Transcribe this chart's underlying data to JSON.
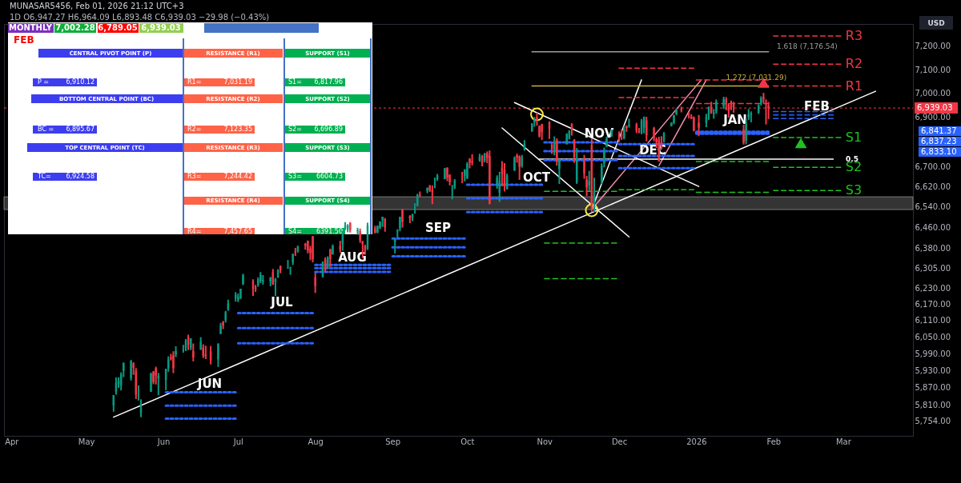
{
  "chart_data": {
    "type": "candlestick",
    "log": "y",
    "xlim": [
      "2025-03-29",
      "2026-03-29"
    ],
    "xticks": [
      {
        "value": "2025-04-01",
        "label": "Apr"
      },
      {
        "value": "2025-05-01",
        "label": "May"
      },
      {
        "value": "2025-06-01",
        "label": "Jun"
      },
      {
        "value": "2025-07-01",
        "label": "Jul"
      },
      {
        "value": "2025-08-01",
        "label": "Aug"
      },
      {
        "value": "2025-09-01",
        "label": "Sep"
      },
      {
        "value": "2025-10-01",
        "label": "Oct"
      },
      {
        "value": "2025-11-01",
        "label": "Nov"
      },
      {
        "value": "2025-12-01",
        "label": "Dec"
      },
      {
        "value": "2026-01-01",
        "label": "2026"
      },
      {
        "value": "2026-02-01",
        "label": "Feb"
      },
      {
        "value": "2026-03-01",
        "label": "Mar"
      }
    ],
    "ylim": [
      5703,
      7297
    ],
    "yticks": [
      {
        "value": 7200,
        "label": "7,200.00"
      },
      {
        "value": 7100,
        "label": "7,100.00"
      },
      {
        "value": 7000,
        "label": "7,000.00"
      },
      {
        "value": 6900,
        "label": "6,900.00"
      },
      {
        "value": 6700,
        "label": "6,700.00"
      },
      {
        "value": 6620,
        "label": "6,620.00"
      },
      {
        "value": 6540,
        "label": "6,540.00"
      },
      {
        "value": 6460,
        "label": "6,460.00"
      },
      {
        "value": 6380,
        "label": "6,380.00"
      },
      {
        "value": 6305,
        "label": "6,305.00"
      },
      {
        "value": 6230,
        "label": "6,230.00"
      },
      {
        "value": 6170,
        "label": "6,170.00"
      },
      {
        "value": 6110,
        "label": "6,110.00"
      },
      {
        "value": 6050,
        "label": "6,050.00"
      },
      {
        "value": 5990,
        "label": "5,990.00"
      },
      {
        "value": 5930,
        "label": "5,930.00"
      },
      {
        "value": 5870,
        "label": "5,870.00"
      },
      {
        "value": 5810,
        "label": "5,810.00"
      },
      {
        "value": 5754,
        "label": "5,754.00"
      }
    ],
    "x": [
      "2025-05-12",
      "2025-05-13",
      "2025-05-14",
      "2025-05-15",
      "2025-05-16",
      "2025-05-19",
      "2025-05-20",
      "2025-05-21",
      "2025-05-22",
      "2025-05-23",
      "2025-05-27",
      "2025-05-28",
      "2025-05-29",
      "2025-05-30",
      "2025-06-02",
      "2025-06-03",
      "2025-06-04",
      "2025-06-05",
      "2025-06-06",
      "2025-06-09",
      "2025-06-10",
      "2025-06-11",
      "2025-06-12",
      "2025-06-13",
      "2025-06-16",
      "2025-06-17",
      "2025-06-18",
      "2025-06-20",
      "2025-06-23",
      "2025-06-24",
      "2025-06-25",
      "2025-06-26",
      "2025-06-27",
      "2025-06-30",
      "2025-07-01",
      "2025-07-02",
      "2025-07-03",
      "2025-07-07",
      "2025-07-08",
      "2025-07-09",
      "2025-07-10",
      "2025-07-11",
      "2025-07-14",
      "2025-07-15",
      "2025-07-16",
      "2025-07-17",
      "2025-07-18",
      "2025-07-21",
      "2025-07-22",
      "2025-07-23",
      "2025-07-24",
      "2025-07-25",
      "2025-07-28",
      "2025-07-29",
      "2025-07-30",
      "2025-07-31",
      "2025-08-01",
      "2025-08-04",
      "2025-08-05",
      "2025-08-06",
      "2025-08-07",
      "2025-08-08",
      "2025-08-11",
      "2025-08-12",
      "2025-08-13",
      "2025-08-14",
      "2025-08-15",
      "2025-08-18",
      "2025-08-19",
      "2025-08-20",
      "2025-08-21",
      "2025-08-22",
      "2025-08-25",
      "2025-08-26",
      "2025-08-27",
      "2025-08-28",
      "2025-08-29",
      "2025-09-02",
      "2025-09-03",
      "2025-09-04",
      "2025-09-05",
      "2025-09-08",
      "2025-09-09",
      "2025-09-10",
      "2025-09-11",
      "2025-09-12",
      "2025-09-15",
      "2025-09-16",
      "2025-09-17",
      "2025-09-18",
      "2025-09-19",
      "2025-09-22",
      "2025-09-23",
      "2025-09-24",
      "2025-09-25",
      "2025-09-26",
      "2025-09-29",
      "2025-09-30",
      "2025-10-01",
      "2025-10-02",
      "2025-10-03",
      "2025-10-06",
      "2025-10-07",
      "2025-10-08",
      "2025-10-09",
      "2025-10-10",
      "2025-10-13",
      "2025-10-14",
      "2025-10-15",
      "2025-10-16",
      "2025-10-17",
      "2025-10-20",
      "2025-10-21",
      "2025-10-22",
      "2025-10-23",
      "2025-10-24",
      "2025-10-27",
      "2025-10-28",
      "2025-10-29",
      "2025-10-30",
      "2025-10-31",
      "2025-11-03",
      "2025-11-04",
      "2025-11-05",
      "2025-11-06",
      "2025-11-07",
      "2025-11-10",
      "2025-11-11",
      "2025-11-12",
      "2025-11-13",
      "2025-11-14",
      "2025-11-17",
      "2025-11-18",
      "2025-11-19",
      "2025-11-20",
      "2025-11-21",
      "2025-11-24",
      "2025-11-25",
      "2025-11-26",
      "2025-11-28",
      "2025-12-01",
      "2025-12-02",
      "2025-12-03",
      "2025-12-04",
      "2025-12-05",
      "2025-12-08",
      "2025-12-09",
      "2025-12-10",
      "2025-12-11",
      "2025-12-12",
      "2025-12-15",
      "2025-12-16",
      "2025-12-17",
      "2025-12-18",
      "2025-12-19",
      "2025-12-22",
      "2025-12-23",
      "2025-12-24",
      "2025-12-26",
      "2025-12-29",
      "2025-12-30",
      "2025-12-31",
      "2026-01-02",
      "2026-01-05",
      "2026-01-06",
      "2026-01-07",
      "2026-01-08",
      "2026-01-09",
      "2026-01-12",
      "2026-01-13",
      "2026-01-14",
      "2026-01-15",
      "2026-01-16",
      "2026-01-20",
      "2026-01-21",
      "2026-01-22",
      "2026-01-23",
      "2026-01-26",
      "2026-01-27",
      "2026-01-28",
      "2026-01-29",
      "2026-01-30"
    ],
    "ohlc": [
      [
        5807,
        5844,
        5786,
        5844
      ],
      [
        5854,
        5906,
        5845,
        5886
      ],
      [
        5884,
        5906,
        5869,
        5892
      ],
      [
        5877,
        5924,
        5860,
        5916
      ],
      [
        5929,
        5958,
        5907,
        5958
      ],
      [
        5903,
        5968,
        5895,
        5964
      ],
      [
        5954,
        5960,
        5915,
        5940
      ],
      [
        5928,
        5939,
        5830,
        5845
      ],
      [
        5841,
        5878,
        5825,
        5842
      ],
      [
        5781,
        5829,
        5767,
        5802
      ],
      [
        5855,
        5922,
        5855,
        5921
      ],
      [
        5926,
        5929,
        5882,
        5889
      ],
      [
        5939,
        5944,
        5881,
        5912
      ],
      [
        5903,
        5922,
        5843,
        5912
      ],
      [
        5897,
        5937,
        5861,
        5936
      ],
      [
        5938,
        5981,
        5926,
        5970
      ],
      [
        5978,
        5990,
        5966,
        5971
      ],
      [
        5985,
        5999,
        5921,
        5939
      ],
      [
        5987,
        6017,
        5978,
        6000
      ],
      [
        6004,
        6022,
        5994,
        6006
      ],
      [
        6010,
        6043,
        6000,
        6038
      ],
      [
        6050,
        6059,
        6003,
        6022
      ],
      [
        6010,
        6046,
        6003,
        6045
      ],
      [
        6000,
        6027,
        5963,
        5977
      ],
      [
        6005,
        6050,
        6004,
        6033
      ],
      [
        6012,
        6024,
        5975,
        5983
      ],
      [
        5988,
        6019,
        5971,
        5981
      ],
      [
        5999,
        6018,
        5952,
        5967
      ],
      [
        5970,
        6028,
        5943,
        6025
      ],
      [
        6062,
        6102,
        6061,
        6092
      ],
      [
        6105,
        6109,
        6079,
        6092
      ],
      [
        6111,
        6146,
        6103,
        6141
      ],
      [
        6151,
        6187,
        6146,
        6173
      ],
      [
        6193,
        6215,
        6180,
        6205
      ],
      [
        6187,
        6210,
        6178,
        6198
      ],
      [
        6194,
        6228,
        6189,
        6227
      ],
      [
        6246,
        6284,
        6241,
        6279
      ],
      [
        6256,
        6263,
        6201,
        6230
      ],
      [
        6233,
        6242,
        6216,
        6226
      ],
      [
        6242,
        6270,
        6235,
        6263
      ],
      [
        6256,
        6290,
        6249,
        6280
      ],
      [
        6255,
        6279,
        6243,
        6260
      ],
      [
        6255,
        6272,
        6237,
        6269
      ],
      [
        6290,
        6302,
        6242,
        6244
      ],
      [
        6254,
        6268,
        6201,
        6264
      ],
      [
        6269,
        6301,
        6269,
        6297
      ],
      [
        6312,
        6315,
        6286,
        6297
      ],
      [
        6304,
        6336,
        6303,
        6306
      ],
      [
        6307,
        6310,
        6280,
        6309
      ],
      [
        6326,
        6360,
        6317,
        6359
      ],
      [
        6368,
        6382,
        6351,
        6363
      ],
      [
        6370,
        6390,
        6364,
        6389
      ],
      [
        6397,
        6401,
        6375,
        6390
      ],
      [
        6409,
        6410,
        6361,
        6371
      ],
      [
        6380,
        6390,
        6335,
        6362
      ],
      [
        6427,
        6428,
        6327,
        6339
      ],
      [
        6271,
        6288,
        6212,
        6238
      ],
      [
        6271,
        6330,
        6271,
        6330
      ],
      [
        6337,
        6346,
        6289,
        6299
      ],
      [
        6309,
        6350,
        6302,
        6345
      ],
      [
        6375,
        6379,
        6310,
        6340
      ],
      [
        6358,
        6395,
        6356,
        6389
      ],
      [
        6390,
        6409,
        6363,
        6374
      ],
      [
        6398,
        6446,
        6371,
        6446
      ],
      [
        6460,
        6481,
        6450,
        6466
      ],
      [
        6453,
        6473,
        6442,
        6469
      ],
      [
        6478,
        6481,
        6441,
        6450
      ],
      [
        6446,
        6459,
        6432,
        6449
      ],
      [
        6446,
        6456,
        6401,
        6411
      ],
      [
        6406,
        6409,
        6343,
        6396
      ],
      [
        6389,
        6394,
        6356,
        6370
      ],
      [
        6378,
        6479,
        6374,
        6467
      ],
      [
        6457,
        6467,
        6438,
        6439
      ],
      [
        6441,
        6468,
        6438,
        6466
      ],
      [
        6458,
        6485,
        6454,
        6481
      ],
      [
        6489,
        6502,
        6463,
        6502
      ],
      [
        6494,
        6497,
        6444,
        6460
      ],
      [
        6406,
        6417,
        6361,
        6416
      ],
      [
        6445,
        6454,
        6421,
        6448
      ],
      [
        6457,
        6502,
        6446,
        6502
      ],
      [
        6530,
        6533,
        6460,
        6482
      ],
      [
        6504,
        6508,
        6477,
        6495
      ],
      [
        6498,
        6513,
        6485,
        6512
      ],
      [
        6531,
        6555,
        6514,
        6532
      ],
      [
        6545,
        6592,
        6542,
        6587
      ],
      [
        6588,
        6601,
        6579,
        6584
      ],
      [
        6602,
        6617,
        6594,
        6615
      ],
      [
        6624,
        6627,
        6599,
        6606
      ],
      [
        6608,
        6625,
        6551,
        6600
      ],
      [
        6630,
        6656,
        6614,
        6631
      ],
      [
        6650,
        6671,
        6643,
        6664
      ],
      [
        6650,
        6695,
        6650,
        6693
      ],
      [
        6696,
        6697,
        6642,
        6656
      ],
      [
        6667,
        6669,
        6625,
        6638
      ],
      [
        6604,
        6627,
        6570,
        6605
      ],
      [
        6620,
        6650,
        6611,
        6644
      ],
      [
        6662,
        6679,
        6634,
        6661
      ],
      [
        6663,
        6690,
        6641,
        6688
      ],
      [
        6654,
        6718,
        6650,
        6711
      ],
      [
        6732,
        6734,
        6693,
        6715
      ],
      [
        6722,
        6750,
        6705,
        6716
      ],
      [
        6725,
        6752,
        6720,
        6740
      ],
      [
        6743,
        6747,
        6701,
        6714
      ],
      [
        6723,
        6755,
        6717,
        6753
      ],
      [
        6753,
        6761,
        6714,
        6735
      ],
      [
        6744,
        6765,
        6550,
        6553
      ],
      [
        6623,
        6665,
        6612,
        6655
      ],
      [
        6596,
        6679,
        6560,
        6644
      ],
      [
        6697,
        6722,
        6621,
        6671
      ],
      [
        6689,
        6714,
        6601,
        6630
      ],
      [
        6612,
        6672,
        6609,
        6664
      ],
      [
        6684,
        6741,
        6683,
        6735
      ],
      [
        6745,
        6752,
        6716,
        6736
      ],
      [
        6742,
        6745,
        6647,
        6699
      ],
      [
        6703,
        6747,
        6696,
        6738
      ],
      [
        6769,
        6807,
        6764,
        6792
      ],
      [
        6843,
        6876,
        6841,
        6875
      ],
      [
        6880,
        6902,
        6862,
        6891
      ],
      [
        6902,
        6920,
        6866,
        6890
      ],
      [
        6865,
        6867,
        6818,
        6822
      ],
      [
        6872,
        6874,
        6808,
        6840
      ],
      [
        6881,
        6884,
        6812,
        6852
      ],
      [
        6788,
        6798,
        6751,
        6771
      ],
      [
        6762,
        6822,
        6745,
        6796
      ],
      [
        6807,
        6814,
        6704,
        6720
      ],
      [
        6691,
        6728,
        6631,
        6728
      ],
      [
        6791,
        6835,
        6789,
        6832
      ],
      [
        6812,
        6847,
        6810,
        6846
      ],
      [
        6874,
        6876,
        6826,
        6850
      ],
      [
        6810,
        6811,
        6715,
        6737
      ],
      [
        6637,
        6775,
        6631,
        6734
      ],
      [
        6722,
        6747,
        6651,
        6672
      ],
      [
        6648,
        6663,
        6583,
        6617
      ],
      [
        6625,
        6683,
        6604,
        6642
      ],
      [
        6785,
        6813,
        6520,
        6538
      ],
      [
        6555,
        6656,
        6521,
        6603
      ],
      [
        6633,
        6713,
        6630,
        6705
      ],
      [
        6713,
        6777,
        6697,
        6766
      ],
      [
        6782,
        6821,
        6778,
        6813
      ],
      [
        6822,
        6850,
        6822,
        6849
      ],
      [
        6830,
        6843,
        6799,
        6813
      ],
      [
        6830,
        6851,
        6808,
        6829
      ],
      [
        6815,
        6862,
        6810,
        6850
      ],
      [
        6866,
        6867,
        6841,
        6857
      ],
      [
        6867,
        6895,
        6858,
        6870
      ],
      [
        6871,
        6878,
        6836,
        6846
      ],
      [
        6842,
        6857,
        6835,
        6840
      ],
      [
        6836,
        6894,
        6831,
        6887
      ],
      [
        6858,
        6904,
        6835,
        6901
      ],
      [
        6889,
        6903,
        6802,
        6827
      ],
      [
        6856,
        6861,
        6802,
        6816
      ],
      [
        6812,
        6818,
        6775,
        6800
      ],
      [
        6811,
        6821,
        6720,
        6721
      ],
      [
        6800,
        6823,
        6768,
        6775
      ],
      [
        6805,
        6840,
        6798,
        6834
      ],
      [
        6866,
        6880,
        6863,
        6878
      ],
      [
        6878,
        6911,
        6872,
        6910
      ],
      [
        6915,
        6937,
        6910,
        6932
      ],
      [
        6935,
        6945,
        6921,
        6930
      ],
      [
        6907,
        6921,
        6896,
        6906
      ],
      [
        6904,
        6913,
        6893,
        6896
      ],
      [
        6900,
        6904,
        6843,
        6845
      ],
      [
        6878,
        6910,
        6823,
        6858
      ],
      [
        6878,
        6915,
        6860,
        6902
      ],
      [
        6905,
        6945,
        6890,
        6944
      ],
      [
        6944,
        6965,
        6915,
        6921
      ],
      [
        6915,
        6935,
        6895,
        6921
      ],
      [
        6925,
        6975,
        6915,
        6966
      ],
      [
        6945,
        6986,
        6935,
        6977
      ],
      [
        6975,
        6985,
        6930,
        6963
      ],
      [
        6955,
        6960,
        6900,
        6926
      ],
      [
        6950,
        6970,
        6930,
        6944
      ],
      [
        6955,
        6965,
        6920,
        6940
      ],
      [
        6850,
        6870,
        6789.05,
        6797
      ],
      [
        6805,
        6895,
        6790,
        6876
      ],
      [
        6900,
        6935,
        6890,
        6913
      ],
      [
        6910,
        6925,
        6880,
        6916
      ],
      [
        6920,
        6955,
        6915,
        6950
      ],
      [
        6960,
        6988,
        6950,
        6979
      ],
      [
        6985,
        7002.28,
        6960,
        6978
      ],
      [
        6970,
        6975,
        6871,
        6969
      ],
      [
        6947.27,
        6964.09,
        6893.48,
        6939.03
      ]
    ],
    "series": [
      {
        "type": "line",
        "color": "#ffffff",
        "line_style": "solid",
        "x": [
          "2025-05-12",
          "2026-03-14"
        ],
        "values": [
          5767,
          7009
        ]
      },
      {
        "type": "line",
        "color": "#ffffff",
        "line_style": "solid",
        "x": [
          "2025-10-20",
          "2026-01-02"
        ],
        "values": [
          6962,
          6621
        ]
      },
      {
        "type": "line",
        "color": "#ffffff",
        "line_style": "solid",
        "x": [
          "2025-10-15",
          "2025-12-05"
        ],
        "values": [
          6857,
          6424
        ]
      },
      {
        "type": "line",
        "color": "#ffffff",
        "line_style": "solid",
        "x": [
          "2025-11-20",
          "2025-12-10"
        ],
        "values": [
          6530,
          7057
        ]
      },
      {
        "type": "line",
        "color": "#f48fb1",
        "line_style": "solid",
        "x": [
          "2025-11-20",
          "2026-01-03"
        ],
        "values": [
          6530,
          7057
        ]
      },
      {
        "type": "line",
        "color": "#f48fb1",
        "line_style": "solid",
        "x": [
          "2025-12-17",
          "2026-01-05"
        ],
        "values": [
          6704,
          7057
        ]
      },
      {
        "type": "line",
        "color": "#ffffff",
        "line_style": "solid",
        "x": [
          "2025-10-30",
          "2026-02-25"
        ],
        "values": [
          6730,
          6730
        ]
      },
      {
        "type": "line",
        "color": "#c9b037",
        "line_style": "solid",
        "x": [
          "2025-10-27",
          "2026-01-30"
        ],
        "values": [
          7031.29,
          7031.29
        ]
      },
      {
        "type": "line",
        "color": "#9e9e9e",
        "line_style": "solid",
        "x": [
          "2025-10-27",
          "2026-01-30"
        ],
        "values": [
          7176.54,
          7176.54
        ]
      },
      {
        "type": "line",
        "name": "R3",
        "color": "#f23645",
        "line_style": "dashed",
        "x": [
          "2026-02-01",
          "2026-02-28"
        ],
        "values": [
          7244.42,
          7244.42
        ]
      },
      {
        "type": "line",
        "name": "R2",
        "color": "#f23645",
        "line_style": "dashed",
        "x": [
          "2026-02-01",
          "2026-02-28"
        ],
        "values": [
          7123.35,
          7123.35
        ]
      },
      {
        "type": "line",
        "name": "R1",
        "color": "#f23645",
        "line_style": "dashed",
        "x": [
          "2026-02-01",
          "2026-02-28"
        ],
        "values": [
          7031.19,
          7031.19
        ]
      },
      {
        "type": "line",
        "name": "S1",
        "color": "#1ec31e",
        "line_style": "dashed",
        "x": [
          "2026-02-01",
          "2026-02-28"
        ],
        "values": [
          6817.96,
          6817.96
        ]
      },
      {
        "type": "line",
        "name": "S2",
        "color": "#1ec31e",
        "line_style": "dashed",
        "x": [
          "2026-02-01",
          "2026-02-28"
        ],
        "values": [
          6696.89,
          6696.89
        ]
      },
      {
        "type": "line",
        "name": "S3",
        "color": "#1ec31e",
        "line_style": "dashed",
        "x": [
          "2026-02-01",
          "2026-02-28"
        ],
        "values": [
          6604.73,
          6604.73
        ]
      },
      {
        "type": "line",
        "color": "#f23645",
        "line_style": "dashed",
        "x": [
          "2025-12-01",
          "2025-12-31"
        ],
        "values": [
          7107,
          7107
        ]
      },
      {
        "type": "line",
        "color": "#f23645",
        "line_style": "dashed",
        "x": [
          "2025-12-01",
          "2025-12-31"
        ],
        "values": [
          6983,
          6983
        ]
      },
      {
        "type": "line",
        "color": "#f23645",
        "line_style": "dashed",
        "x": [
          "2026-01-01",
          "2026-01-30"
        ],
        "values": [
          7057,
          7057
        ]
      },
      {
        "type": "line",
        "color": "#f23645",
        "line_style": "dashed",
        "x": [
          "2026-01-01",
          "2026-01-30"
        ],
        "values": [
          6958,
          6958
        ]
      },
      {
        "type": "line",
        "color": "#1ec31e",
        "line_style": "dashed",
        "x": [
          "2025-11-01",
          "2025-11-30"
        ],
        "values": [
          6602,
          6602
        ]
      },
      {
        "type": "line",
        "color": "#1ec31e",
        "line_style": "dashed",
        "x": [
          "2025-11-01",
          "2025-11-30"
        ],
        "values": [
          6400,
          6400
        ]
      },
      {
        "type": "line",
        "color": "#1ec31e",
        "line_style": "dashed",
        "x": [
          "2025-11-01",
          "2025-11-30"
        ],
        "values": [
          6265,
          6265
        ]
      },
      {
        "type": "line",
        "color": "#1ec31e",
        "line_style": "dashed",
        "x": [
          "2025-12-01",
          "2025-12-31"
        ],
        "values": [
          6608,
          6608
        ]
      },
      {
        "type": "line",
        "color": "#1ec31e",
        "line_style": "dashed",
        "x": [
          "2026-01-01",
          "2026-01-30"
        ],
        "values": [
          6720,
          6720
        ]
      },
      {
        "type": "line",
        "color": "#1ec31e",
        "line_style": "dashed",
        "x": [
          "2026-01-01",
          "2026-01-30"
        ],
        "values": [
          6598,
          6598
        ]
      },
      {
        "type": "line",
        "color": "#2962ff",
        "line_style": "dotted",
        "x": [
          "2025-06-02",
          "2025-06-30"
        ],
        "values": [
          5854,
          5854
        ]
      },
      {
        "type": "line",
        "color": "#2962ff",
        "line_style": "dotted",
        "x": [
          "2025-06-02",
          "2025-06-30"
        ],
        "values": [
          5807,
          5807
        ]
      },
      {
        "type": "line",
        "color": "#2962ff",
        "line_style": "dotted",
        "x": [
          "2025-06-02",
          "2025-06-30"
        ],
        "values": [
          5762,
          5762
        ]
      },
      {
        "type": "line",
        "color": "#2962ff",
        "line_style": "dotted",
        "x": [
          "2025-07-01",
          "2025-07-31"
        ],
        "values": [
          6138,
          6138
        ]
      },
      {
        "type": "line",
        "color": "#2962ff",
        "line_style": "dotted",
        "x": [
          "2025-07-01",
          "2025-07-31"
        ],
        "values": [
          6083,
          6083
        ]
      },
      {
        "type": "line",
        "color": "#2962ff",
        "line_style": "dotted",
        "x": [
          "2025-07-01",
          "2025-07-31"
        ],
        "values": [
          6028,
          6028
        ]
      },
      {
        "type": "line",
        "color": "#2962ff",
        "line_style": "dotted",
        "x": [
          "2025-08-01",
          "2025-08-31"
        ],
        "values": [
          6317,
          6317
        ]
      },
      {
        "type": "line",
        "color": "#2962ff",
        "line_style": "dotted",
        "x": [
          "2025-08-01",
          "2025-08-31"
        ],
        "values": [
          6305,
          6305
        ]
      },
      {
        "type": "line",
        "color": "#2962ff",
        "line_style": "dotted",
        "x": [
          "2025-08-01",
          "2025-08-31"
        ],
        "values": [
          6291,
          6291
        ]
      },
      {
        "type": "line",
        "color": "#2962ff",
        "line_style": "dotted",
        "x": [
          "2025-09-01",
          "2025-09-30"
        ],
        "values": [
          6418,
          6418
        ]
      },
      {
        "type": "line",
        "color": "#2962ff",
        "line_style": "dotted",
        "x": [
          "2025-09-01",
          "2025-09-30"
        ],
        "values": [
          6384,
          6384
        ]
      },
      {
        "type": "line",
        "color": "#2962ff",
        "line_style": "dotted",
        "x": [
          "2025-09-01",
          "2025-09-30"
        ],
        "values": [
          6350,
          6350
        ]
      },
      {
        "type": "line",
        "color": "#2962ff",
        "line_style": "dotted",
        "x": [
          "2025-10-01",
          "2025-10-31"
        ],
        "values": [
          6628,
          6628
        ]
      },
      {
        "type": "line",
        "color": "#2962ff",
        "line_style": "dotted",
        "x": [
          "2025-10-01",
          "2025-10-31"
        ],
        "values": [
          6574,
          6574
        ]
      },
      {
        "type": "line",
        "color": "#2962ff",
        "line_style": "dotted",
        "x": [
          "2025-10-01",
          "2025-10-31"
        ],
        "values": [
          6520,
          6520
        ]
      },
      {
        "type": "line",
        "color": "#2962ff",
        "line_style": "dotted",
        "x": [
          "2025-11-01",
          "2025-11-30"
        ],
        "values": [
          6798,
          6798
        ]
      },
      {
        "type": "line",
        "color": "#2962ff",
        "line_style": "dotted",
        "x": [
          "2025-11-01",
          "2025-11-30"
        ],
        "values": [
          6762,
          6762
        ]
      },
      {
        "type": "line",
        "color": "#2962ff",
        "line_style": "dotted",
        "x": [
          "2025-11-01",
          "2025-11-30"
        ],
        "values": [
          6726,
          6726
        ]
      },
      {
        "type": "line",
        "color": "#2962ff",
        "line_style": "dotted",
        "x": [
          "2025-12-01",
          "2025-12-31"
        ],
        "values": [
          6791,
          6791
        ]
      },
      {
        "type": "line",
        "color": "#2962ff",
        "line_style": "dotted",
        "x": [
          "2025-12-01",
          "2025-12-31"
        ],
        "values": [
          6743,
          6743
        ]
      },
      {
        "type": "line",
        "color": "#2962ff",
        "line_style": "dotted",
        "x": [
          "2025-12-01",
          "2025-12-31"
        ],
        "values": [
          6694,
          6694
        ]
      },
      {
        "type": "line",
        "color": "#2962ff",
        "line_style": "dotted",
        "x": [
          "2026-01-01",
          "2026-01-30"
        ],
        "values": [
          6841.37,
          6841.37
        ]
      },
      {
        "type": "line",
        "color": "#2962ff",
        "line_style": "dotted",
        "x": [
          "2026-01-01",
          "2026-01-30"
        ],
        "values": [
          6837.23,
          6837.23
        ]
      },
      {
        "type": "line",
        "color": "#2962ff",
        "line_style": "dotted",
        "x": [
          "2026-01-01",
          "2026-01-30"
        ],
        "values": [
          6833.1,
          6833.1
        ]
      },
      {
        "type": "line",
        "color": "#2962ff",
        "line_style": "dashed",
        "x": [
          "2026-02-01",
          "2026-02-25"
        ],
        "values": [
          6924.58,
          6924.58
        ]
      },
      {
        "type": "line",
        "color": "#2962ff",
        "line_style": "dashed",
        "x": [
          "2026-02-01",
          "2026-02-25"
        ],
        "values": [
          6910.12,
          6910.12
        ]
      },
      {
        "type": "line",
        "color": "#2962ff",
        "line_style": "dashed",
        "x": [
          "2026-02-01",
          "2026-02-25"
        ],
        "values": [
          6895.67,
          6895.67
        ]
      },
      {
        "type": "scatter",
        "marker": "circle",
        "color": "#ffeb3b",
        "x": [
          "2025-10-29",
          "2025-11-20"
        ],
        "values": [
          6913,
          6527
        ]
      },
      {
        "type": "scatter",
        "marker": "triangle",
        "color": "#f23645",
        "x": [
          "2026-01-28"
        ],
        "values": [
          7045
        ]
      },
      {
        "type": "scatter",
        "marker": "triangle",
        "color": "#1ec31e",
        "x": [
          "2026-02-12"
        ],
        "values": [
          6795
        ]
      }
    ],
    "ref_lines": [
      {
        "axis": "y",
        "value": 6939.03,
        "label": "6,939.03",
        "color": "#f23645",
        "line_style": "dotted"
      }
    ],
    "bands": [
      {
        "axis": "y",
        "from": 6530,
        "to": 6580,
        "color": "#3a3a3a"
      }
    ],
    "annotations": [
      "MONTHLY",
      "7,002.28",
      "6,789.05",
      "6,939.03",
      "FEB",
      "CENTRAL PIVOT POINT (P)",
      "RESISTANCE (R1)",
      "SUPPORT (S1)",
      "P =",
      "6,910.12",
      "R1=",
      "7,031.19",
      "S1=",
      "6,817.96",
      "BOTTOM CENTRAL POINT (BC)",
      "RESISTANCE (R2)",
      "SUPPORT (S2)",
      "BC =",
      "6,895.67",
      "R2=",
      "7,123.35",
      "S2=",
      "6,696.89",
      "TOP CENTRAL POINT (TC)",
      "RESISTANCE (R3)",
      "SUPPORT (S3)",
      "TC=",
      "6,924.58",
      "R3=",
      "7,244.42",
      "S3=",
      "6604.73",
      "RESISTANCE (R4)",
      "SUPPORT (S4)",
      "R4=",
      "7,457.65",
      "S4=",
      "6391.50",
      "1D  O6,947.27  H6,964.09  L6,893.48  C6,939.03  −29.98 (−0.43%)",
      "MUNASAR5456, Feb 01, 2026 21:12 UTC+3",
      "USD",
      "JUN",
      "JUL",
      "AUG",
      "SEP",
      "OCT",
      "NOV",
      "DEC",
      "JAN",
      "FEB",
      "1.618 (7,176.54)",
      "0.5",
      "6,841.37",
      "6,837.23",
      "6,833.10",
      {
        "text": "1.272 (7,031.29)",
        "x": "2026-02-06",
        "y": 7031.29
      }
    ]
  }
}
